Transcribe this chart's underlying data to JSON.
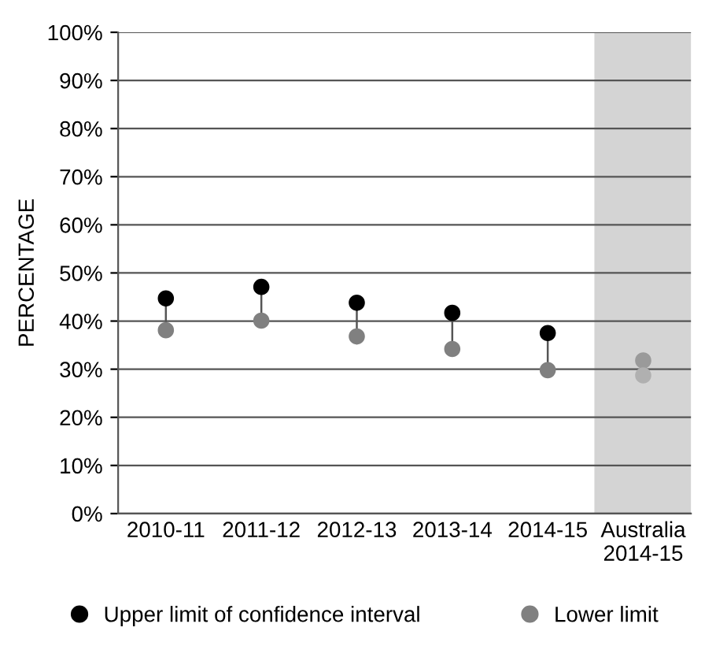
{
  "chart_data": {
    "type": "scatter",
    "ylabel": "PERCENTAGE",
    "categories": [
      "2010-11",
      "2011-12",
      "2012-13",
      "2013-14",
      "2014-15",
      "Australia\n2014-15"
    ],
    "series": [
      {
        "name": "Upper limit of confidence interval",
        "color": "#000000",
        "colors": [
          "#000000",
          "#000000",
          "#000000",
          "#000000",
          "#000000",
          "#9a9a9a"
        ],
        "values": [
          44.7,
          47.1,
          43.8,
          41.7,
          37.5,
          31.8
        ]
      },
      {
        "name": "Lower limit",
        "color": "#808080",
        "colors": [
          "#808080",
          "#808080",
          "#808080",
          "#808080",
          "#808080",
          "#b0b0b0"
        ],
        "values": [
          38.1,
          40.1,
          36.8,
          34.2,
          29.8,
          28.7
        ]
      }
    ],
    "bands": [
      {
        "axis": "x",
        "from": "Australia\n2014-15",
        "to": "Australia\n2014-15",
        "color": "#d4d4d4"
      }
    ],
    "ylim": [
      0,
      100
    ],
    "yticks": [
      {
        "value": 0,
        "label": "0%"
      },
      {
        "value": 10,
        "label": "10%"
      },
      {
        "value": 20,
        "label": "20%"
      },
      {
        "value": 30,
        "label": "30%"
      },
      {
        "value": 40,
        "label": "40%"
      },
      {
        "value": 50,
        "label": "50%"
      },
      {
        "value": 60,
        "label": "60%"
      },
      {
        "value": 70,
        "label": "70%"
      },
      {
        "value": 80,
        "label": "80%"
      },
      {
        "value": 90,
        "label": "90%"
      },
      {
        "value": 100,
        "label": "100%"
      }
    ],
    "grid": "y",
    "legend": "bottom",
    "marker": "circle"
  }
}
